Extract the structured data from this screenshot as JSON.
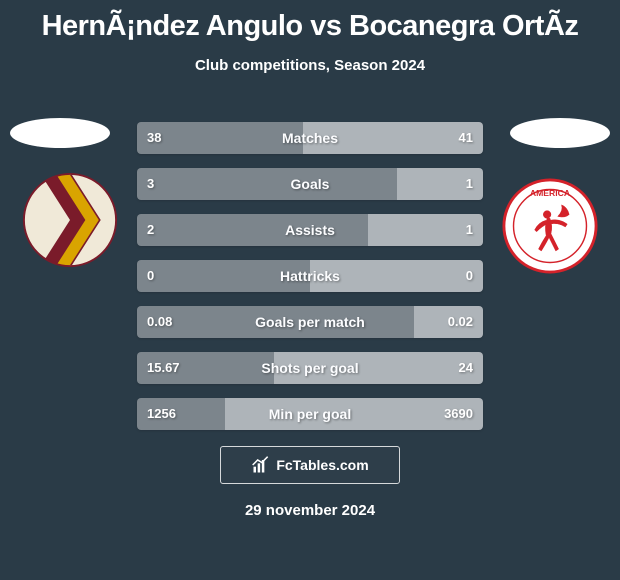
{
  "background_color": "#2a3b47",
  "title": "HernÃ¡ndez Angulo vs Bocanegra OrtÃ­z",
  "subtitle": "Club competitions, Season 2024",
  "date": "29 november 2024",
  "branding_text": "FcTables.com",
  "colors": {
    "left_bar": "#7c858c",
    "right_bar": "#aeb4b9",
    "text": "#ffffff",
    "ellipse": "#ffffff"
  },
  "club_left": {
    "name": "tolima-badge",
    "bg": "#f0e9d8",
    "stripes": [
      "#7a1b2a",
      "#d9a400",
      "#7a1b2a"
    ]
  },
  "club_right": {
    "name": "america-badge",
    "bg": "#ffffff",
    "ring": "#d4222a",
    "figure": "#d4222a"
  },
  "rows": [
    {
      "label": "Matches",
      "left": "38",
      "right": "41",
      "left_pct": 48.1
    },
    {
      "label": "Goals",
      "left": "3",
      "right": "1",
      "left_pct": 75.0
    },
    {
      "label": "Assists",
      "left": "2",
      "right": "1",
      "left_pct": 66.7
    },
    {
      "label": "Hattricks",
      "left": "0",
      "right": "0",
      "left_pct": 50.0
    },
    {
      "label": "Goals per match",
      "left": "0.08",
      "right": "0.02",
      "left_pct": 80.0
    },
    {
      "label": "Shots per goal",
      "left": "15.67",
      "right": "24",
      "left_pct": 39.5
    },
    {
      "label": "Min per goal",
      "left": "1256",
      "right": "3690",
      "left_pct": 25.4
    }
  ]
}
